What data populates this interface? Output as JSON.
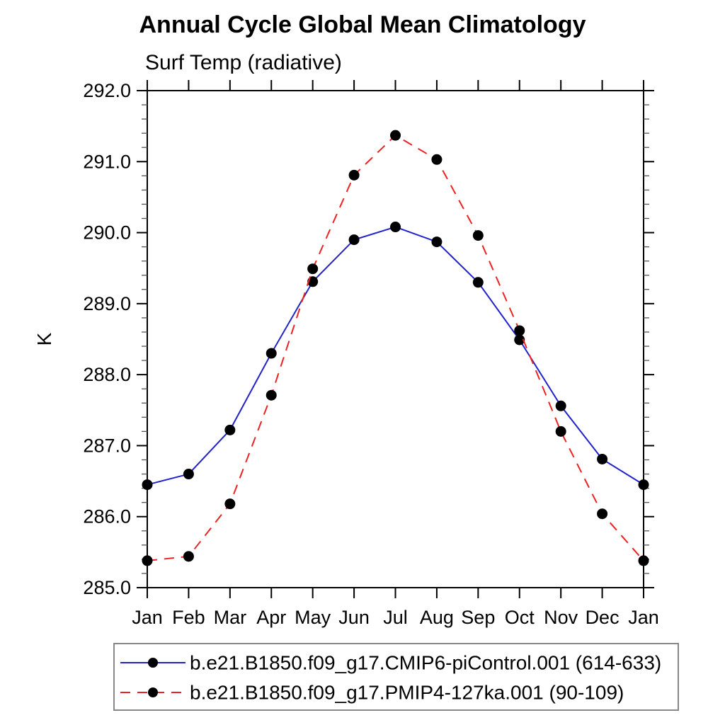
{
  "header": {
    "title": "Annual Cycle Global Mean Climatology",
    "subtitle": "Surf Temp (radiative)"
  },
  "colors": {
    "axis": "#000000",
    "minor_tick": "#555555",
    "legend_border": "#888888",
    "marker": "#000000",
    "series_blue": "#2222cc",
    "series_red": "#ee2222"
  },
  "chart_data": {
    "type": "line",
    "title": "Annual Cycle Global Mean Climatology",
    "subtitle": "Surf Temp (radiative)",
    "xlabel": "",
    "ylabel": "K",
    "categories": [
      "Jan",
      "Feb",
      "Mar",
      "Apr",
      "May",
      "Jun",
      "Jul",
      "Aug",
      "Sep",
      "Oct",
      "Nov",
      "Dec",
      "Jan"
    ],
    "ylim": [
      285.0,
      292.0
    ],
    "ytick_interval": 1.0,
    "yminor_interval": 0.2,
    "ytick_labels": [
      "285.0",
      "286.0",
      "287.0",
      "288.0",
      "289.0",
      "290.0",
      "291.0",
      "292.0"
    ],
    "grid": false,
    "legend_position": "bottom-box",
    "series": [
      {
        "name": "b.e21.B1850.f09_g17.CMIP6-piControl.001 (614-633)",
        "color": "#2222cc",
        "line_style": "solid",
        "marker": "filled-circle",
        "marker_color": "#000000",
        "values": [
          286.45,
          286.6,
          287.22,
          288.3,
          289.31,
          289.9,
          290.08,
          289.87,
          289.3,
          288.49,
          287.56,
          286.81,
          286.45
        ]
      },
      {
        "name": "b.e21.B1850.f09_g17.PMIP4-127ka.001 (90-109)",
        "color": "#ee2222",
        "line_style": "dashed",
        "marker": "filled-circle",
        "marker_color": "#000000",
        "values": [
          285.38,
          285.44,
          286.18,
          287.71,
          289.49,
          290.81,
          291.37,
          291.03,
          289.96,
          288.62,
          287.2,
          286.04,
          285.38
        ]
      }
    ]
  }
}
